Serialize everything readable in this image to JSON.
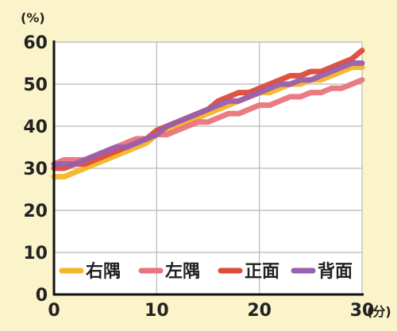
{
  "chart_data": {
    "type": "line",
    "y_unit": "(%)",
    "x_unit": "(分)",
    "xlim": [
      0,
      30
    ],
    "ylim": [
      0,
      60
    ],
    "x_ticks": [
      0,
      10,
      20,
      30
    ],
    "y_ticks": [
      0,
      10,
      20,
      30,
      40,
      50,
      60
    ],
    "grid": true,
    "legend_position": "bottom-inside",
    "x": [
      0,
      1,
      2,
      3,
      4,
      5,
      6,
      7,
      8,
      9,
      10,
      11,
      12,
      13,
      14,
      15,
      16,
      17,
      18,
      19,
      20,
      21,
      22,
      23,
      24,
      25,
      26,
      27,
      28,
      29,
      30
    ],
    "series": [
      {
        "name": "右隅",
        "color": "#f4b526",
        "values": [
          28,
          28,
          29,
          30,
          31,
          32,
          33,
          34,
          35,
          36,
          38,
          39,
          40,
          41,
          42,
          43,
          44,
          45,
          46,
          47,
          48,
          48,
          49,
          50,
          50,
          51,
          51,
          52,
          53,
          54,
          54
        ]
      },
      {
        "name": "左隅",
        "color": "#e9747b",
        "values": [
          31,
          32,
          32,
          32,
          33,
          34,
          35,
          36,
          37,
          37,
          38,
          38,
          39,
          40,
          41,
          41,
          42,
          43,
          43,
          44,
          45,
          45,
          46,
          47,
          47,
          48,
          48,
          49,
          49,
          50,
          51
        ]
      },
      {
        "name": "正面",
        "color": "#de4a3a",
        "values": [
          30,
          30,
          31,
          31,
          32,
          33,
          34,
          35,
          36,
          37,
          39,
          40,
          41,
          42,
          43,
          44,
          46,
          47,
          48,
          48,
          49,
          50,
          51,
          52,
          52,
          53,
          53,
          54,
          55,
          56,
          58
        ]
      },
      {
        "name": "背面",
        "color": "#9a5fad",
        "values": [
          31,
          31,
          31,
          32,
          33,
          34,
          35,
          35,
          36,
          37,
          38,
          40,
          41,
          42,
          43,
          44,
          45,
          46,
          46,
          47,
          48,
          49,
          50,
          50,
          51,
          51,
          52,
          53,
          54,
          55,
          55
        ]
      }
    ]
  }
}
